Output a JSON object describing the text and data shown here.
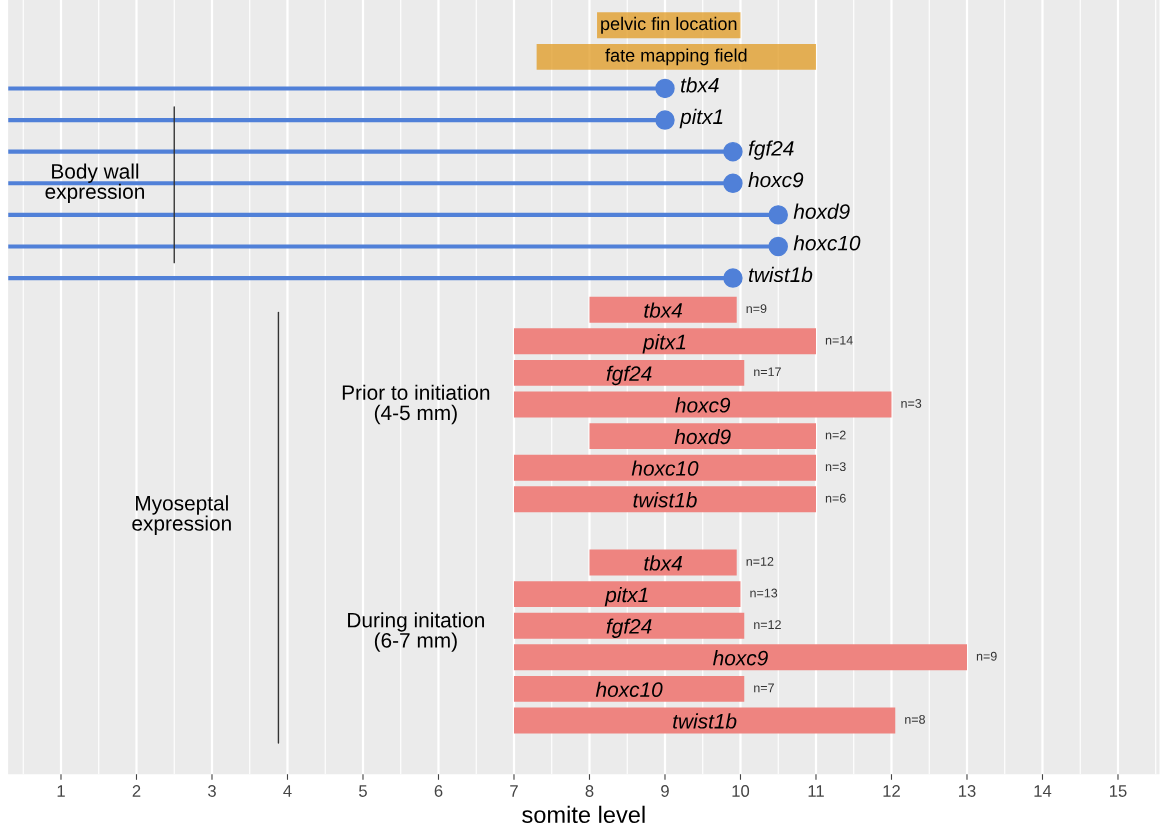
{
  "chart_data": {
    "type": "bar",
    "orientation": "horizontal",
    "xlabel": "somite level",
    "categories": [
      "pelvic fin location",
      "fate mapping field",
      "tbx4",
      "pitx1",
      "fgf24",
      "hoxc9",
      "hoxd9",
      "hoxc10",
      "twist1b",
      "tbx4",
      "pitx1",
      "fgf24",
      "hoxc9",
      "hoxd9",
      "hoxc10",
      "twist1b",
      null,
      "tbx4",
      "pitx1",
      "fgf24",
      "hoxc9",
      "hoxc10",
      "twist1b"
    ],
    "series": [
      {
        "color": "#e09a20",
        "base": [
          8.1,
          7.3,
          null,
          null,
          null,
          null,
          null,
          null,
          null,
          null,
          null,
          null,
          null,
          null,
          null,
          null,
          null,
          null,
          null,
          null,
          null,
          null,
          null
        ],
        "values": [
          1.9,
          3.7,
          null,
          null,
          null,
          null,
          null,
          null,
          null,
          null,
          null,
          null,
          null,
          null,
          null,
          null,
          null,
          null,
          null,
          null,
          null,
          null,
          null
        ]
      },
      {
        "type": "lollipop",
        "color": "#5080d8",
        "values": [
          null,
          null,
          9,
          9,
          9.9,
          9.9,
          10.5,
          10.5,
          9.9,
          null,
          null,
          null,
          null,
          null,
          null,
          null,
          null,
          null,
          null,
          null,
          null,
          null,
          null
        ]
      },
      {
        "color": "#ee8480",
        "base": [
          null,
          null,
          null,
          null,
          null,
          null,
          null,
          null,
          null,
          8,
          7,
          7,
          7,
          8,
          7,
          7,
          null,
          8,
          7,
          7,
          7,
          7,
          7
        ],
        "values": [
          null,
          null,
          null,
          null,
          null,
          null,
          null,
          null,
          null,
          1.95,
          4,
          3.05,
          5,
          3,
          4,
          4,
          null,
          1.95,
          3,
          3.05,
          6,
          3.05,
          5.05
        ]
      }
    ],
    "annotations": [
      "Body wall\nexpression",
      "Myoseptal\nexpression",
      "Prior to initiation\n(4-5 mm)",
      "During initation\n(6-7 mm)",
      "n=9",
      "n=14",
      "n=17",
      "n=3",
      "n=2",
      "n=3",
      "n=6",
      "n=12",
      "n=13",
      "n=12",
      "n=9",
      "n=7",
      "n=8"
    ],
    "xlim": [
      0.3,
      15.55
    ],
    "xticks": [
      1,
      2,
      3,
      4,
      5,
      6,
      7,
      8,
      9,
      10,
      11,
      12,
      13,
      14,
      15
    ],
    "grid": "x"
  }
}
